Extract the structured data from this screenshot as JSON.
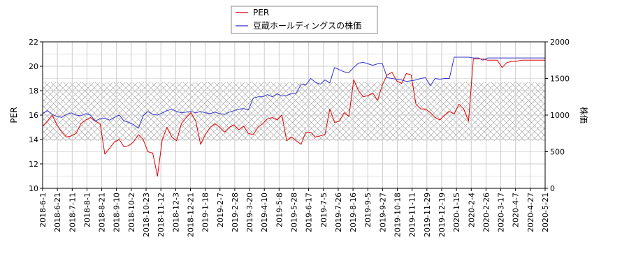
{
  "chart_data": {
    "type": "line",
    "title": "",
    "xlabel": "",
    "ylabel_left": "PER",
    "ylabel_right": "株価",
    "ylim_left": [
      10,
      22
    ],
    "yticks_left": [
      "10",
      "12",
      "14",
      "16",
      "18",
      "20",
      "22"
    ],
    "ylim_right": [
      0,
      2000
    ],
    "yticks_right": [
      "0",
      "500",
      "1000",
      "1500",
      "2000"
    ],
    "grid": true,
    "hatched_band_right": [
      650,
      1450
    ],
    "legend_position": "top-center",
    "x_tick_labels": [
      "2018-6-1",
      "2018-6-21",
      "2018-7-11",
      "2018-8-1",
      "2018-8-21",
      "2018-9-10",
      "2018-10-2",
      "2018-10-23",
      "2018-11-12",
      "2018-12-3",
      "2018-12-21",
      "2019-1-18",
      "2019-2-7",
      "2019-2-28",
      "2019-3-20",
      "2019-4-10",
      "2019-5-8",
      "2019-5-28",
      "2019-6-17",
      "2019-7-5",
      "2019-7-26",
      "2019-8-16",
      "2019-9-5",
      "2019-9-27",
      "2019-10-18",
      "2019-11-11",
      "2019-11-29",
      "2019-12-19",
      "2020-1-15",
      "2020-2-4",
      "2020-2-26",
      "2020-3-17",
      "2020-4-7",
      "2020-4-27",
      "2020-5-21"
    ],
    "series": [
      {
        "name": "PER",
        "color": "#dd0000",
        "axis": "left",
        "values": [
          15.1,
          15.5,
          16.0,
          15.2,
          14.6,
          14.2,
          14.3,
          14.5,
          15.3,
          15.6,
          15.8,
          15.5,
          15.3,
          12.8,
          13.3,
          13.8,
          14.0,
          13.4,
          13.5,
          13.8,
          14.4,
          14.0,
          13.0,
          12.9,
          11.0,
          14.0,
          15.0,
          14.2,
          13.9,
          15.3,
          15.8,
          16.2,
          15.5,
          13.6,
          14.4,
          15.0,
          15.3,
          15.0,
          14.6,
          15.0,
          15.2,
          14.8,
          15.1,
          14.5,
          14.4,
          15.0,
          15.3,
          15.7,
          15.8,
          15.6,
          16.0,
          13.9,
          14.2,
          13.9,
          13.6,
          14.6,
          14.6,
          14.2,
          14.3,
          14.4,
          16.5,
          15.4,
          15.5,
          16.2,
          15.9,
          18.9,
          18.0,
          17.5,
          17.6,
          17.8,
          17.2,
          18.5,
          19.3,
          19.5,
          18.8,
          18.6,
          19.4,
          19.3,
          16.9,
          16.5,
          16.5,
          16.2,
          15.8,
          15.6,
          16.0,
          16.3,
          16.1,
          16.9,
          16.5,
          15.5,
          20.6,
          20.6,
          20.6,
          20.5,
          20.5,
          20.5,
          19.9,
          20.3,
          20.4,
          20.4,
          20.5,
          20.5,
          20.5,
          20.5,
          20.5,
          20.5
        ]
      },
      {
        "name": "豆蔵ホールディングスの株価",
        "color": "#3333cc",
        "axis": "right",
        "values": [
          1020,
          1060,
          1010,
          980,
          970,
          1010,
          1030,
          1000,
          990,
          1020,
          1000,
          920,
          950,
          960,
          930,
          970,
          1000,
          920,
          900,
          870,
          820,
          990,
          1050,
          1010,
          1000,
          1030,
          1060,
          1080,
          1050,
          1030,
          1040,
          1050,
          1030,
          1050,
          1030,
          1020,
          1040,
          1020,
          1010,
          1040,
          1060,
          1080,
          1090,
          1070,
          1230,
          1250,
          1250,
          1280,
          1250,
          1290,
          1260,
          1270,
          1290,
          1300,
          1420,
          1410,
          1500,
          1450,
          1420,
          1480,
          1440,
          1650,
          1620,
          1590,
          1580,
          1650,
          1710,
          1720,
          1700,
          1680,
          1700,
          1700,
          1510,
          1500,
          1490,
          1480,
          1460,
          1470,
          1480,
          1500,
          1510,
          1400,
          1500,
          1490,
          1500,
          1500,
          1790,
          1790,
          1790,
          1790,
          1780,
          1780,
          1750,
          1780,
          1780,
          1780,
          1780,
          1780,
          1780,
          1780,
          1780,
          1780,
          1780,
          1780,
          1780,
          1780
        ]
      }
    ]
  }
}
